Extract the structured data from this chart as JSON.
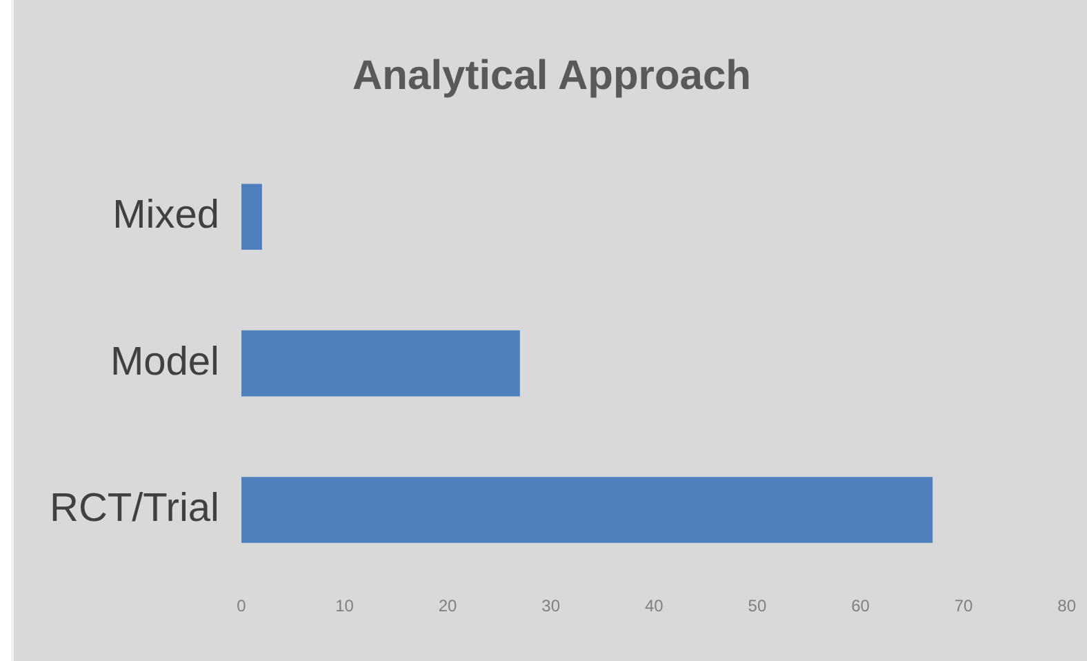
{
  "chart_data": {
    "type": "bar",
    "orientation": "horizontal",
    "title": "Analytical Approach",
    "categories": [
      "Mixed",
      "Model",
      "RCT/Trial"
    ],
    "values": [
      2,
      27,
      67
    ],
    "color": "#4e80bd",
    "xlim": [
      0,
      80
    ],
    "xticks": [
      0,
      10,
      20,
      30,
      40,
      50,
      60,
      70,
      80
    ],
    "grid": false,
    "legend": false
  }
}
